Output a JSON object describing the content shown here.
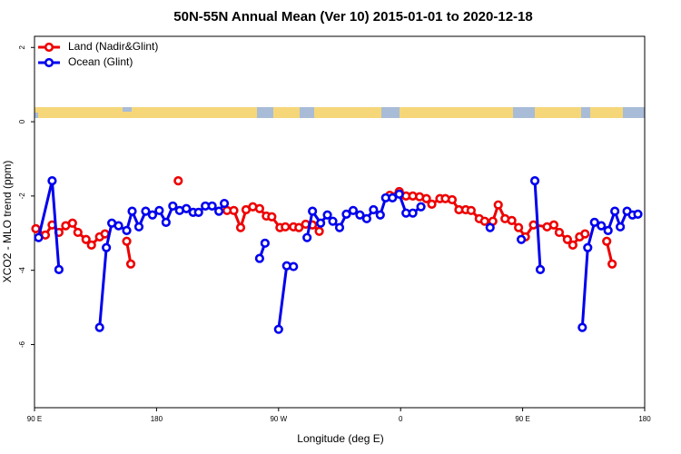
{
  "chart_data": {
    "type": "line",
    "title": "50N-55N Annual Mean (Ver 10)   2015-01-01 to 2020-12-18",
    "x_label": "Longitude (deg E)",
    "y_label": "XCO2 - MLO trend (ppm)",
    "xlim": [
      90,
      540
    ],
    "ylim": [
      -7.7,
      2.3
    ],
    "xticks": [
      {
        "value": 90,
        "label": "90 E"
      },
      180,
      {
        "value": 270,
        "label": "90 W"
      },
      {
        "value": 360,
        "label": "0"
      },
      {
        "value": 450,
        "label": "90 E"
      },
      {
        "value": 540,
        "label": "180"
      }
    ],
    "yticks": [
      -6,
      -4,
      -2,
      0,
      2
    ],
    "legend": "top-left",
    "series": [
      {
        "name": "Land (Nadir&Glint)",
        "color": "#ee0000",
        "x": [
          91,
          98,
          103,
          108,
          113,
          118,
          122,
          128,
          132,
          138,
          142,
          null,
          158,
          161,
          null,
          196,
          null,
          232,
          237,
          242,
          246,
          251,
          256,
          261,
          265,
          271,
          275,
          281,
          285,
          290,
          295,
          300,
          null,
          352,
          359,
          364,
          369,
          374,
          379,
          383,
          389,
          393,
          398,
          403,
          408,
          412,
          418,
          422,
          428,
          432,
          437,
          442,
          447,
          452,
          458,
          468,
          473,
          477,
          483,
          487,
          492,
          496,
          null,
          512,
          516
        ],
        "values": [
          -2.88,
          -3.05,
          -2.78,
          -2.98,
          -2.8,
          -2.73,
          -2.98,
          -3.17,
          -3.32,
          -3.1,
          -3.02,
          null,
          -3.22,
          -3.83,
          null,
          -1.59,
          null,
          -2.39,
          -2.39,
          -2.85,
          -2.37,
          -2.29,
          -2.34,
          -2.54,
          -2.56,
          -2.85,
          -2.83,
          -2.83,
          -2.85,
          -2.76,
          -2.78,
          -2.95,
          null,
          -1.98,
          -1.88,
          -2.0,
          -2.0,
          -2.02,
          -2.07,
          -2.22,
          -2.07,
          -2.07,
          -2.1,
          -2.37,
          -2.37,
          -2.39,
          -2.61,
          -2.68,
          -2.68,
          -2.24,
          -2.61,
          -2.66,
          -2.85,
          -3.1,
          -2.78,
          -2.83,
          -2.78,
          -2.98,
          -3.17,
          -3.32,
          -3.1,
          -3.02,
          null,
          -3.22,
          -3.83
        ]
      },
      {
        "name": "Ocean (Glint)",
        "color": "#0000ee",
        "x": [
          93,
          103,
          108,
          null,
          138,
          143,
          147,
          152,
          158,
          162,
          167,
          172,
          177,
          182,
          187,
          192,
          197,
          202,
          207,
          211,
          216,
          221,
          226,
          230,
          null,
          256,
          260,
          null,
          270,
          276,
          281,
          null,
          291,
          295,
          301,
          306,
          310,
          315,
          320,
          325,
          330,
          335,
          340,
          345,
          349,
          354,
          359,
          364,
          369,
          375,
          null,
          426,
          null,
          449,
          null,
          459,
          463,
          null,
          494,
          498,
          503,
          508,
          513,
          518,
          522,
          527,
          531,
          535
        ],
        "values": [
          -3.12,
          -1.59,
          -3.98,
          null,
          -5.54,
          -3.39,
          -2.73,
          -2.8,
          -2.93,
          -2.41,
          -2.83,
          -2.41,
          -2.51,
          -2.39,
          -2.71,
          -2.27,
          -2.39,
          -2.34,
          -2.44,
          -2.44,
          -2.27,
          -2.27,
          -2.41,
          -2.2,
          null,
          -3.68,
          -3.27,
          null,
          -5.59,
          -3.88,
          -3.9,
          null,
          -3.12,
          -2.41,
          -2.73,
          -2.51,
          -2.68,
          -2.85,
          -2.49,
          -2.39,
          -2.51,
          -2.61,
          -2.37,
          -2.51,
          -2.05,
          -2.05,
          -1.95,
          -2.46,
          -2.46,
          -2.29,
          null,
          -2.85,
          null,
          -3.17,
          null,
          -1.59,
          -3.98,
          null,
          -5.54,
          -3.39,
          -2.71,
          -2.8,
          -2.93,
          -2.41,
          -2.83,
          -2.41,
          -2.51,
          -2.49
        ]
      }
    ]
  }
}
